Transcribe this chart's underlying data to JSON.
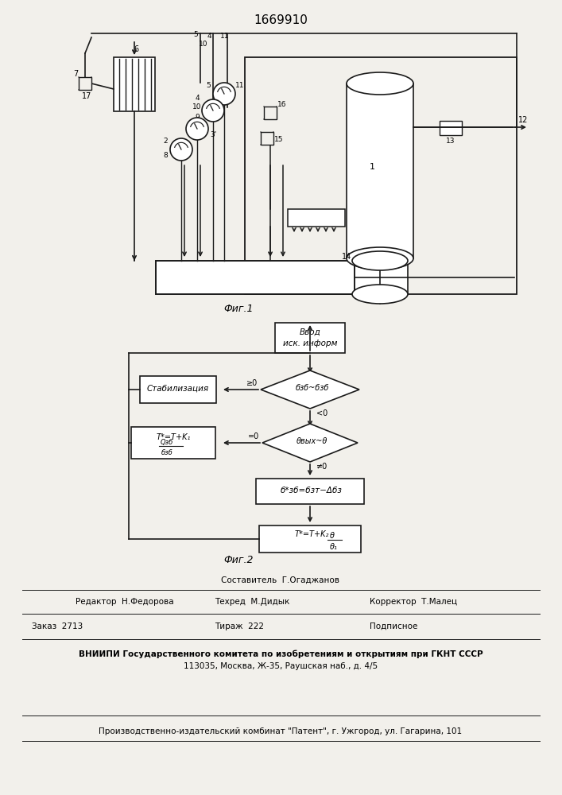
{
  "title": "1669910",
  "fig1_caption": "Фиг.1",
  "fig2_caption": "Фиг.2",
  "bg_color": "#f2f0eb",
  "line_color": "#1a1a1a",
  "footer": {
    "line1_center": "Составитель  Г.Огаджанов",
    "line2_left": "Редактор  Н.Федорова",
    "line2_mid": "Техред  М.Дидык",
    "line2_right": "Корректор  Т.Малец",
    "line3_left": "Заказ  2713",
    "line3_mid": "Тираж  222",
    "line3_right": "Подписное",
    "line4": "ВНИИПИ Государственного комитета по изобретениям и открытиям при ГКНТ СССР",
    "line5": "113035, Москва, Ж-35, Раушская наб., д. 4/5",
    "line6": "Производственно-издательский комбинат \"Патент\", г. Ужгород, ул. Гагарина, 101"
  }
}
